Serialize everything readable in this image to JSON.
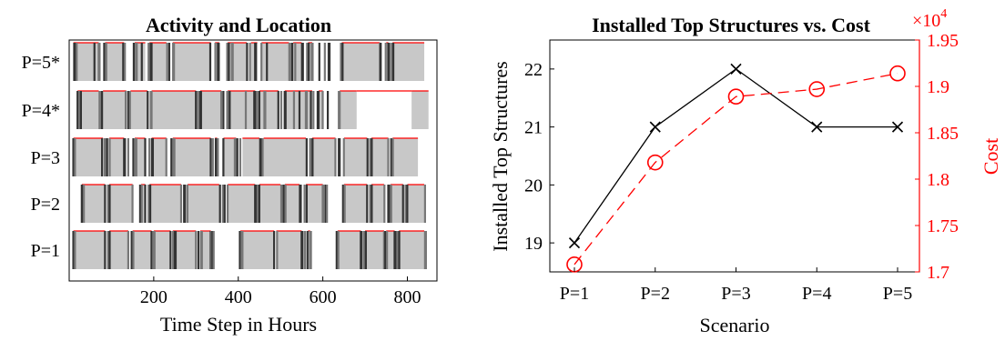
{
  "colors": {
    "active_fill": "#c8c8c8",
    "active_top": "#ff0000",
    "edge_dark": "#333333",
    "edge_mid": "#777777",
    "series_structures": "#000000",
    "series_cost": "#ff0000",
    "axis": "#000000"
  },
  "chart_data": [
    {
      "type": "timeline",
      "title": "Activity and Location",
      "xlabel": "Time Step in Hours",
      "ylabel": "",
      "xlim": [
        0,
        870
      ],
      "xticks": [
        "200",
        "400",
        "600",
        "800"
      ],
      "xtick_values": [
        200,
        400,
        600,
        800
      ],
      "rows": [
        {
          "label": "P=5*",
          "active_segments": [
            [
              10,
              70
            ],
            [
              85,
              130
            ],
            [
              155,
              180
            ],
            [
              190,
              230
            ],
            [
              245,
              335
            ],
            [
              345,
              355
            ],
            [
              375,
              420
            ],
            [
              430,
              445
            ],
            [
              455,
              520
            ],
            [
              530,
              550
            ],
            [
              565,
              575
            ],
            [
              645,
              735
            ],
            [
              750,
              755
            ],
            [
              765,
              840
            ]
          ],
          "blank_segments": [],
          "dark_marks": [
            12,
            18,
            60,
            70,
            83,
            88,
            128,
            132,
            153,
            158,
            172,
            188,
            193,
            232,
            237,
            246,
            334,
            346,
            352,
            374,
            378,
            385,
            421,
            428,
            440,
            455,
            468,
            521,
            528,
            535,
            551,
            563,
            567,
            574,
            592,
            605,
            614,
            643,
            647,
            735,
            737,
            749,
            755,
            763,
            767
          ]
        },
        {
          "label": "P=4*",
          "active_segments": [
            [
              20,
              70
            ],
            [
              80,
              135
            ],
            [
              145,
              185
            ],
            [
              195,
              300
            ],
            [
              310,
              360
            ],
            [
              375,
              440
            ],
            [
              450,
              495
            ],
            [
              510,
              575
            ],
            [
              590,
              600
            ],
            [
              640,
              680
            ],
            [
              810,
              850
            ]
          ],
          "blank_segments": [
            [
              680,
              810
            ]
          ],
          "dark_marks": [
            20,
            24,
            28,
            72,
            78,
            134,
            140,
            144,
            186,
            193,
            300,
            305,
            310,
            360,
            365,
            374,
            380,
            418,
            438,
            445,
            450,
            462,
            495,
            502,
            510,
            532,
            545,
            560,
            572,
            578,
            588,
            600,
            612,
            638
          ]
        },
        {
          "label": "P=3",
          "active_segments": [
            [
              10,
              80
            ],
            [
              95,
              130
            ],
            [
              155,
              180
            ],
            [
              195,
              230
            ],
            [
              245,
              335
            ],
            [
              345,
              350
            ],
            [
              365,
              395
            ],
            [
              410,
              450
            ],
            [
              460,
              560
            ],
            [
              575,
              630
            ],
            [
              650,
              705
            ],
            [
              715,
              755
            ],
            [
              765,
              825
            ]
          ],
          "blank_segments": [],
          "dark_marks": [
            10,
            14,
            78,
            84,
            90,
            96,
            130,
            140,
            152,
            157,
            180,
            190,
            196,
            230,
            242,
            247,
            335,
            340,
            347,
            352,
            365,
            392,
            398,
            405,
            452,
            458,
            562,
            570,
            576,
            630,
            638,
            650,
            706,
            712,
            716,
            755,
            762,
            766
          ]
        },
        {
          "label": "P=2",
          "active_segments": [
            [
              30,
              85
            ],
            [
              95,
              150
            ],
            [
              170,
              180
            ],
            [
              190,
              265
            ],
            [
              280,
              355
            ],
            [
              375,
              440
            ],
            [
              450,
              500
            ],
            [
              510,
              545
            ],
            [
              560,
              600
            ],
            [
              650,
              705
            ],
            [
              715,
              745
            ],
            [
              760,
              790
            ],
            [
              800,
              840
            ]
          ],
          "blank_segments": [],
          "dark_marks": [
            30,
            35,
            85,
            92,
            96,
            150,
            168,
            172,
            180,
            188,
            192,
            265,
            272,
            280,
            357,
            364,
            368,
            375,
            440,
            446,
            450,
            502,
            508,
            512,
            546,
            557,
            562,
            600,
            607,
            610,
            648,
            652,
            705,
            712,
            716,
            746,
            755,
            762,
            790,
            796,
            800,
            842
          ]
        },
        {
          "label": "P=1",
          "active_segments": [
            [
              10,
              85
            ],
            [
              95,
              140
            ],
            [
              150,
              195
            ],
            [
              200,
              240
            ],
            [
              245,
              300
            ],
            [
              310,
              335
            ],
            [
              405,
              485
            ],
            [
              490,
              550
            ],
            [
              565,
              570
            ],
            [
              635,
              690
            ],
            [
              700,
              745
            ],
            [
              750,
              770
            ],
            [
              780,
              840
            ]
          ],
          "blank_segments": [],
          "dark_marks": [
            10,
            14,
            85,
            92,
            96,
            140,
            148,
            152,
            195,
            200,
            240,
            246,
            250,
            300,
            306,
            312,
            335,
            337,
            339,
            342,
            404,
            408,
            485,
            492,
            550,
            558,
            564,
            570,
            633,
            637,
            690,
            698,
            702,
            745,
            748,
            752,
            770,
            777,
            781,
            842
          ]
        }
      ]
    },
    {
      "type": "line",
      "title": "Installed Top Structures vs. Cost",
      "xlabel": "Scenario",
      "categories": [
        "P=1",
        "P=2",
        "P=3",
        "P=4",
        "P=5"
      ],
      "ylabel": "Installed Top Structures",
      "y2label": "Cost",
      "ylim": [
        18.5,
        22.5
      ],
      "y2lim": [
        1.7,
        1.95
      ],
      "yticks": [
        "19",
        "20",
        "21",
        "22"
      ],
      "ytick_values": [
        19,
        20,
        21,
        22
      ],
      "y2ticks": [
        "1.7",
        "1.75",
        "1.8",
        "1.85",
        "1.9",
        "1.95"
      ],
      "y2tick_values": [
        1.7,
        1.75,
        1.8,
        1.85,
        1.9,
        1.95
      ],
      "y2_multiplier_base": "×10",
      "y2_multiplier_exp": "4",
      "series": [
        {
          "axis": "left",
          "marker": "x",
          "line": "solid",
          "values": [
            19,
            21,
            22,
            21,
            21
          ]
        },
        {
          "axis": "right",
          "marker": "o",
          "line": "dashed",
          "values": [
            1.708,
            1.818,
            1.889,
            1.897,
            1.914
          ]
        }
      ]
    }
  ]
}
